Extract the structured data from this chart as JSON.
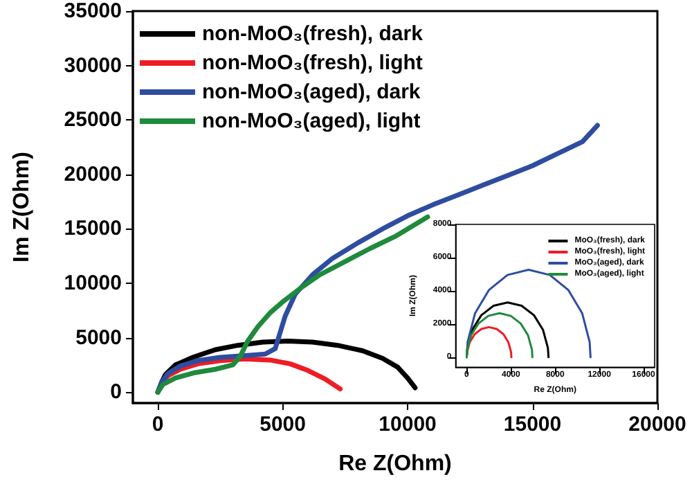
{
  "chart_data": [
    {
      "type": "line",
      "xlabel": "Re Z(Ohm)",
      "ylabel": "Im Z(Ohm)",
      "xlim": [
        -1000,
        20000
      ],
      "xticks": [
        0,
        5000,
        10000,
        15000,
        20000
      ],
      "ylim": [
        -1000,
        35000
      ],
      "yticks": [
        0,
        5000,
        10000,
        15000,
        20000,
        25000,
        30000,
        35000
      ],
      "legend": "top left",
      "grid": false,
      "marker": "none",
      "line_style": "solid",
      "series": [
        {
          "name": "non-MoO₃(fresh), dark",
          "color": "#000000",
          "x": [
            0,
            150,
            300,
            700,
            1400,
            2300,
            3200,
            4200,
            5200,
            6200,
            7200,
            8200,
            9000,
            9600,
            10000,
            10300
          ],
          "values": [
            0,
            900,
            1600,
            2500,
            3200,
            3900,
            4300,
            4600,
            4700,
            4600,
            4300,
            3800,
            3100,
            2300,
            1300,
            400
          ]
        },
        {
          "name": "non-MoO₃(fresh), light",
          "color": "#ee1c24",
          "x": [
            0,
            150,
            400,
            900,
            1600,
            2500,
            3500,
            4500,
            5300,
            6000,
            6700,
            7300
          ],
          "values": [
            0,
            800,
            1500,
            2100,
            2600,
            2900,
            3050,
            2950,
            2600,
            2000,
            1200,
            300
          ]
        },
        {
          "name": "non-MoO₃(aged), dark",
          "color": "#2e4da0",
          "x": [
            0,
            150,
            400,
            900,
            1600,
            2500,
            3500,
            4300,
            4700,
            4900,
            5100,
            5500,
            6200,
            7000,
            8000,
            9000,
            10000,
            11000,
            12000,
            13000,
            14000,
            15000,
            16000,
            17000,
            17600
          ],
          "values": [
            0,
            900,
            1700,
            2400,
            2900,
            3200,
            3350,
            3500,
            4000,
            5500,
            7000,
            9000,
            10800,
            12300,
            13700,
            15000,
            16200,
            17200,
            18100,
            19000,
            19900,
            20800,
            21900,
            23000,
            24500
          ]
        },
        {
          "name": "non-MoO₃(aged), light",
          "color": "#1f8a3c",
          "x": [
            0,
            200,
            700,
            1500,
            2300,
            3000,
            3300,
            3600,
            4000,
            4500,
            5000,
            5800,
            6500,
            7500,
            8500,
            9500,
            10800
          ],
          "values": [
            0,
            700,
            1300,
            1800,
            2100,
            2500,
            3300,
            4700,
            6000,
            7300,
            8300,
            9700,
            10800,
            12000,
            13200,
            14300,
            16100
          ]
        }
      ]
    },
    {
      "type": "line",
      "xlabel": "Re Z(Ohm)",
      "ylabel": "Im Z(Ohm)",
      "xlim": [
        -1000,
        17000
      ],
      "xticks": [
        0,
        4000,
        8000,
        12000,
        16000
      ],
      "ylim": [
        -600,
        8000
      ],
      "yticks": [
        0,
        2000,
        4000,
        6000,
        8000
      ],
      "legend": "top right",
      "grid": false,
      "marker": "none",
      "line_style": "solid",
      "series": [
        {
          "name": "MoO₃(fresh), dark",
          "color": "#000000",
          "x": [
            0,
            60,
            500,
            1320,
            2430,
            3700,
            4970,
            6080,
            6900,
            7340,
            7400
          ],
          "values": [
            0,
            570,
            1650,
            2530,
            3100,
            3300,
            3100,
            2530,
            1650,
            570,
            0
          ]
        },
        {
          "name": "MoO₃(fresh), light",
          "color": "#ee1c24",
          "x": [
            0,
            30,
            270,
            720,
            1330,
            2020,
            2710,
            3320,
            3770,
            4010,
            4040
          ],
          "values": [
            0,
            310,
            900,
            1390,
            1700,
            1810,
            1700,
            1390,
            900,
            310,
            0
          ]
        },
        {
          "name": "MoO₃(aged), dark",
          "color": "#2e4da0",
          "x": [
            0,
            80,
            750,
            2000,
            3680,
            5600,
            7520,
            9200,
            10450,
            11120,
            11200
          ],
          "values": [
            0,
            920,
            2640,
            4040,
            4950,
            5270,
            4950,
            4040,
            2640,
            920,
            0
          ]
        },
        {
          "name": "MoO₃(aged), light",
          "color": "#1f8a3c",
          "x": [
            0,
            40,
            400,
            1060,
            1950,
            2970,
            3990,
            4880,
            5540,
            5900,
            5940
          ],
          "values": [
            0,
            460,
            1330,
            2030,
            2490,
            2650,
            2490,
            2030,
            1330,
            460,
            0
          ]
        }
      ]
    }
  ]
}
